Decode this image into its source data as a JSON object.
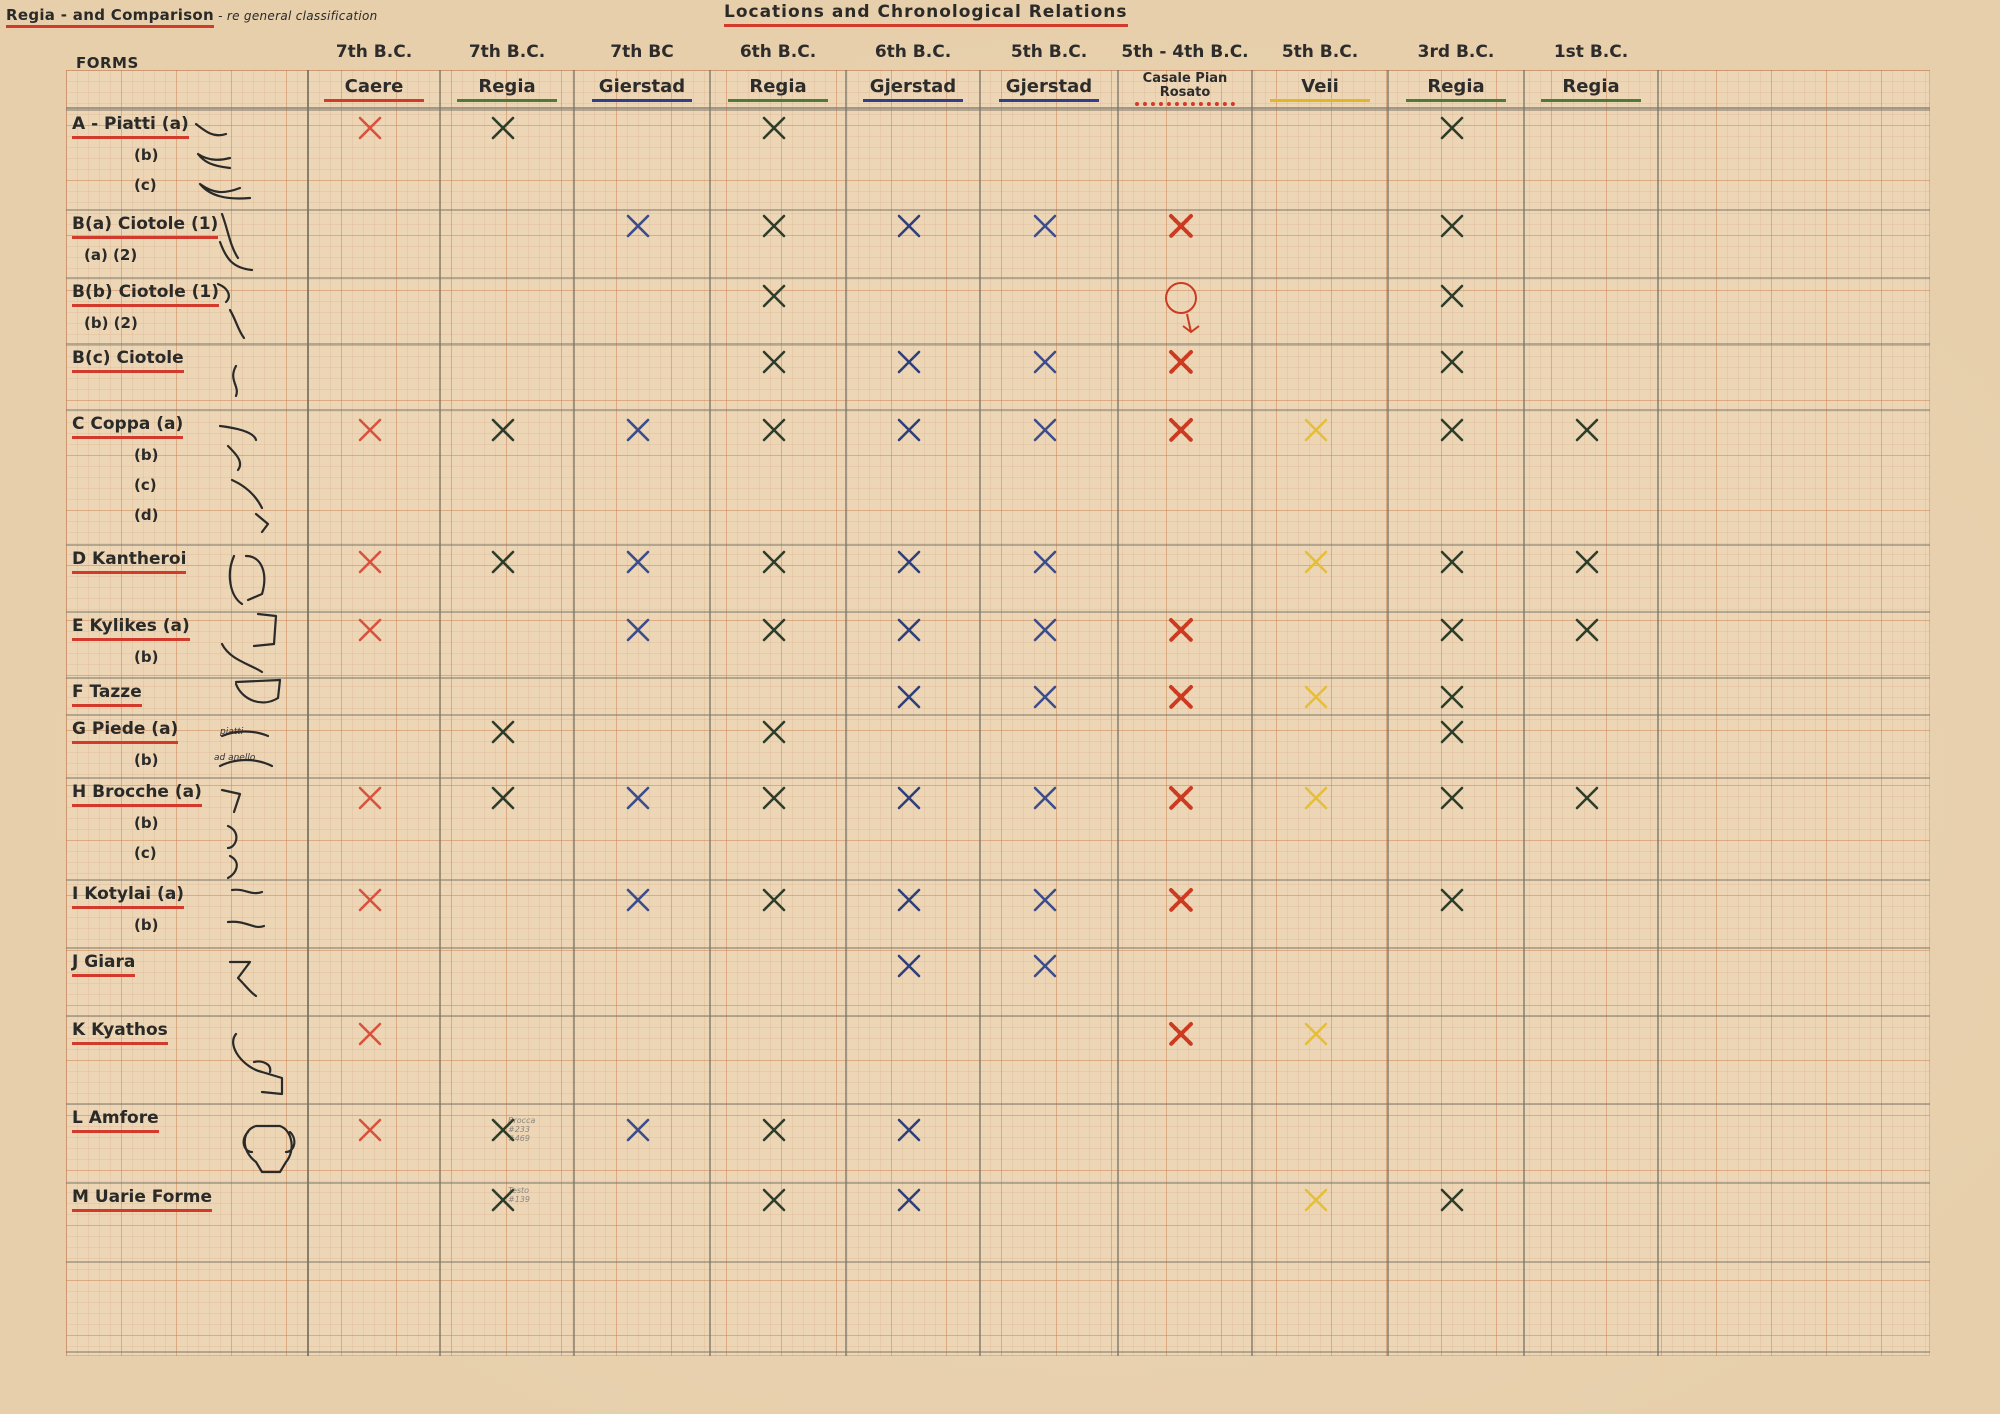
{
  "header": {
    "title_left_main": "Regia - and Comparison",
    "title_left_sub": " - re general classification",
    "title_center": "Locations and Chronological Relations",
    "forms_label": "FORMS"
  },
  "columns": [
    {
      "period": "7th B.C.",
      "location": "Caere",
      "underline": "#d23a2b"
    },
    {
      "period": "7th B.C.",
      "location": "Regia",
      "underline": "#4d7a3c"
    },
    {
      "period": "7th BC",
      "location": "Gierstad",
      "underline": "#2f3f8a"
    },
    {
      "period": "6th B.C.",
      "location": "Regia",
      "underline": "#4d7a3c"
    },
    {
      "period": "6th B.C.",
      "location": "Gjerstad",
      "underline": "#2f3f8a"
    },
    {
      "period": "5th B.C.",
      "location": "Gjerstad",
      "underline": "#2f3f8a"
    },
    {
      "period": "5th - 4th B.C.",
      "location": "Casale Pian Rosato",
      "underline": "#d23a2b"
    },
    {
      "period": "5th B.C.",
      "location": "Veii",
      "underline": "#e0b62a"
    },
    {
      "period": "3rd B.C.",
      "location": "Regia",
      "underline": "#4d7a3c"
    },
    {
      "period": "1st B.C.",
      "location": "Regia",
      "underline": "#4d7a3c"
    }
  ],
  "marker_colors": [
    "#d9523e",
    "#2e3d2a",
    "#3c4d8c",
    "#2e3d2a",
    "#2f3f7a",
    "#3c4d8c",
    "#cc3a22",
    "#e5bf3a",
    "#2e3d2a",
    "#2e3d2a"
  ],
  "rows": [
    {
      "label": "A - Piatti (a)",
      "subs": [
        "(b)",
        "(c)"
      ],
      "marks": [
        0,
        1,
        3,
        8
      ]
    },
    {
      "label": "B(a) Ciotole (1)",
      "subs": [
        "(a)     (2)"
      ],
      "marks": [
        2,
        3,
        4,
        5,
        6,
        8
      ]
    },
    {
      "label": "B(b) Ciotole (1)",
      "subs": [
        "(b)        (2)"
      ],
      "marks": [
        3,
        8
      ],
      "circle_col": 6
    },
    {
      "label": "B(c) Ciotole",
      "subs": [],
      "marks": [
        3,
        4,
        5,
        6,
        8
      ]
    },
    {
      "label": "C  Coppa (a)",
      "subs": [
        "(b)",
        "(c)",
        "(d)"
      ],
      "marks": [
        0,
        1,
        2,
        3,
        4,
        5,
        6,
        7,
        8,
        9
      ]
    },
    {
      "label": "D  Kantheroi",
      "subs": [],
      "marks": [
        0,
        1,
        2,
        3,
        4,
        5,
        7,
        8,
        9
      ]
    },
    {
      "label": "E  Kylikes (a)",
      "subs": [
        "(b)"
      ],
      "marks": [
        0,
        2,
        3,
        4,
        5,
        6,
        8,
        9
      ]
    },
    {
      "label": "F  Tazze",
      "subs": [],
      "marks": [
        4,
        5,
        6,
        7,
        8
      ]
    },
    {
      "label": "G  Piede (a)",
      "subs": [
        "(b)"
      ],
      "marks": [
        1,
        3,
        8
      ],
      "mini_a": "piatti",
      "mini_b": "ad anello"
    },
    {
      "label": "H  Brocche (a)",
      "subs": [
        "(b)",
        "(c)"
      ],
      "marks": [
        0,
        1,
        2,
        3,
        4,
        5,
        6,
        7,
        8,
        9
      ]
    },
    {
      "label": "I  Kotylai (a)",
      "subs": [
        "(b)"
      ],
      "marks": [
        0,
        2,
        3,
        4,
        5,
        6,
        8
      ]
    },
    {
      "label": "J  Giara",
      "subs": [],
      "marks": [
        4,
        5
      ]
    },
    {
      "label": "K  Kyathos",
      "subs": [],
      "marks": [
        0,
        6,
        7
      ]
    },
    {
      "label": "L  Amfore",
      "subs": [],
      "marks": [
        0,
        1,
        2,
        3,
        4
      ],
      "note_col": 1,
      "note": "Brocca #233 #469"
    },
    {
      "label": "M  Uarie Forme",
      "subs": [],
      "marks": [
        1,
        3,
        4,
        7,
        8
      ],
      "note_col": 1,
      "note": "Testo #139"
    }
  ]
}
